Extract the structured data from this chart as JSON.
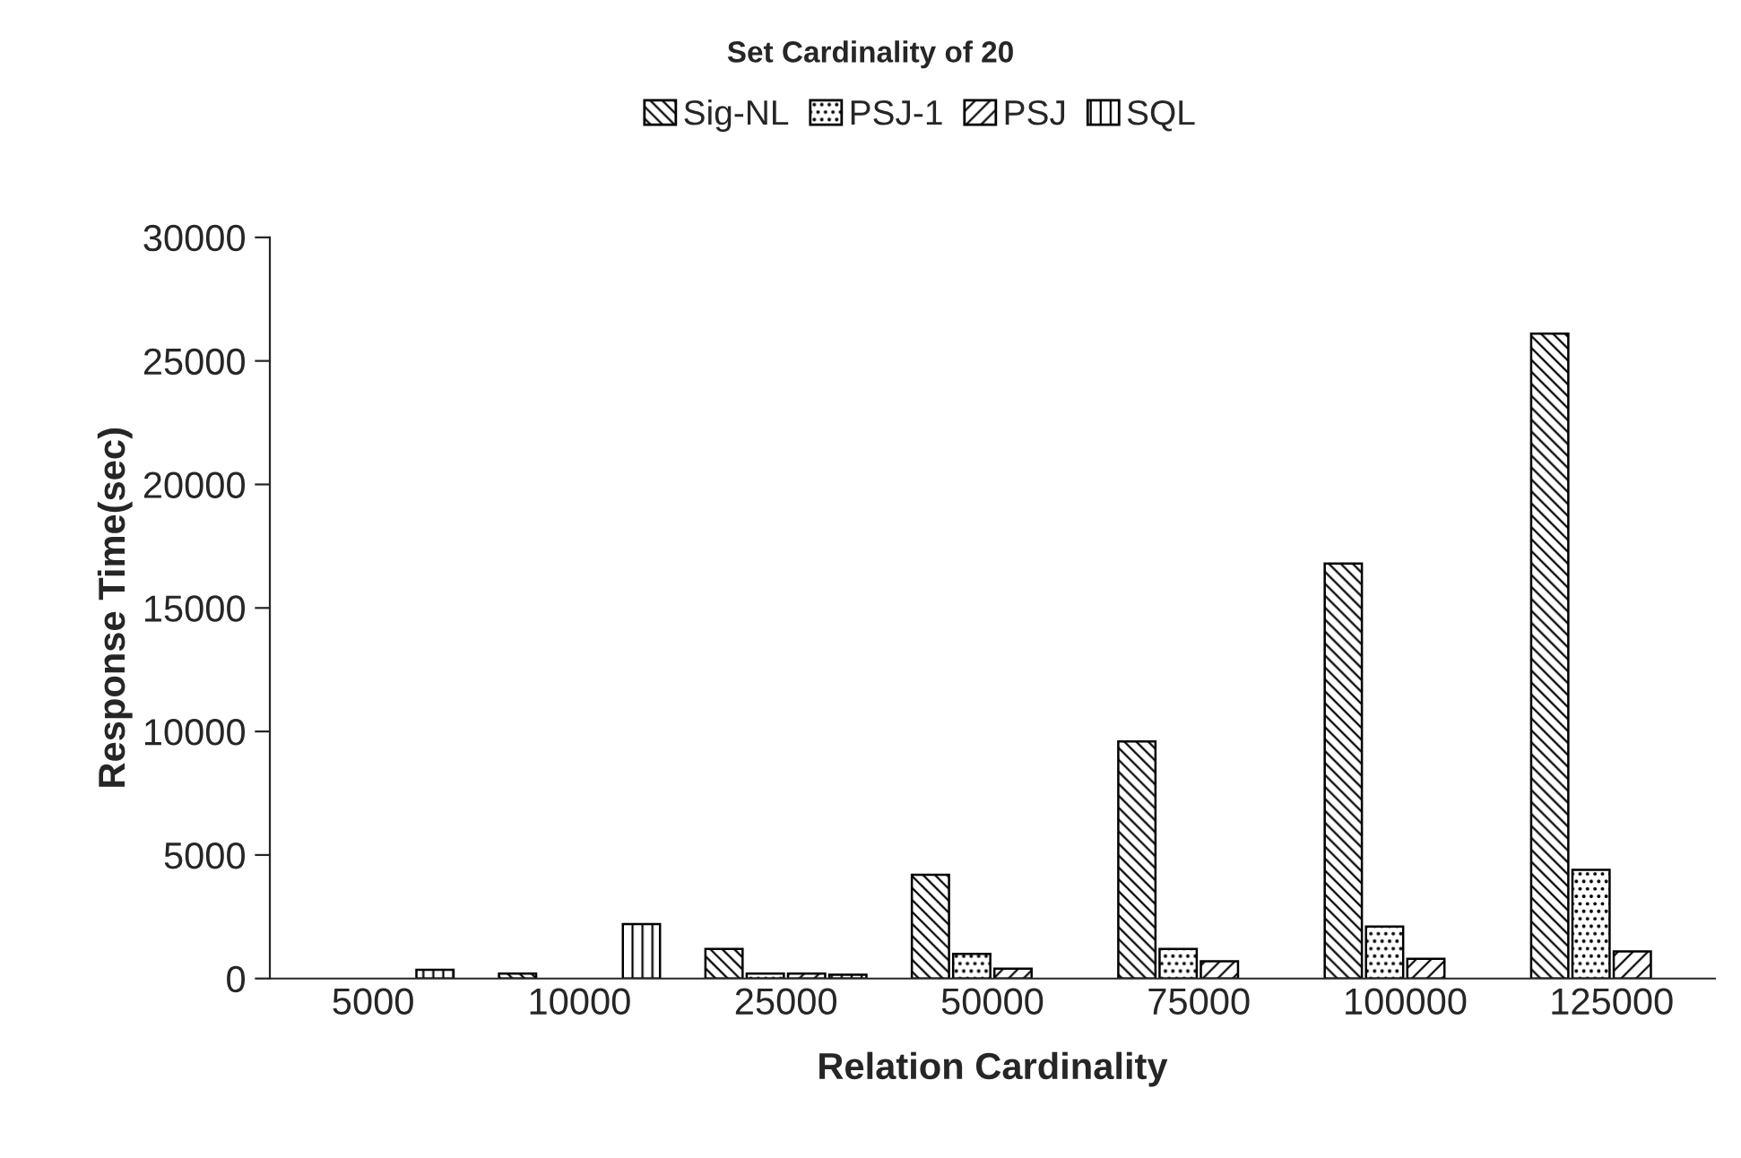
{
  "chart_data": {
    "type": "bar",
    "title": "Set Cardinality of 20",
    "xlabel": "Relation Cardinality",
    "ylabel": "Response Time(sec)",
    "categories": [
      "5000",
      "10000",
      "25000",
      "50000",
      "75000",
      "100000",
      "125000"
    ],
    "series": [
      {
        "name": "Sig-NL",
        "color": "#000000",
        "values": [
          null,
          200,
          1200,
          4200,
          9600,
          16800,
          26100
        ]
      },
      {
        "name": "PSJ-1",
        "color": "#000000",
        "values": [
          null,
          null,
          200,
          1000,
          1200,
          2100,
          4400
        ]
      },
      {
        "name": "PSJ",
        "color": "#000000",
        "values": [
          null,
          null,
          200,
          400,
          700,
          800,
          1100
        ]
      },
      {
        "name": "SQL",
        "color": "#000000",
        "values": [
          350,
          2200,
          150,
          null,
          null,
          null,
          null
        ]
      }
    ],
    "ylim": [
      0,
      30000
    ],
    "yticks": [
      0,
      5000,
      10000,
      15000,
      20000,
      25000,
      30000
    ],
    "grid": false,
    "legend": "top"
  }
}
